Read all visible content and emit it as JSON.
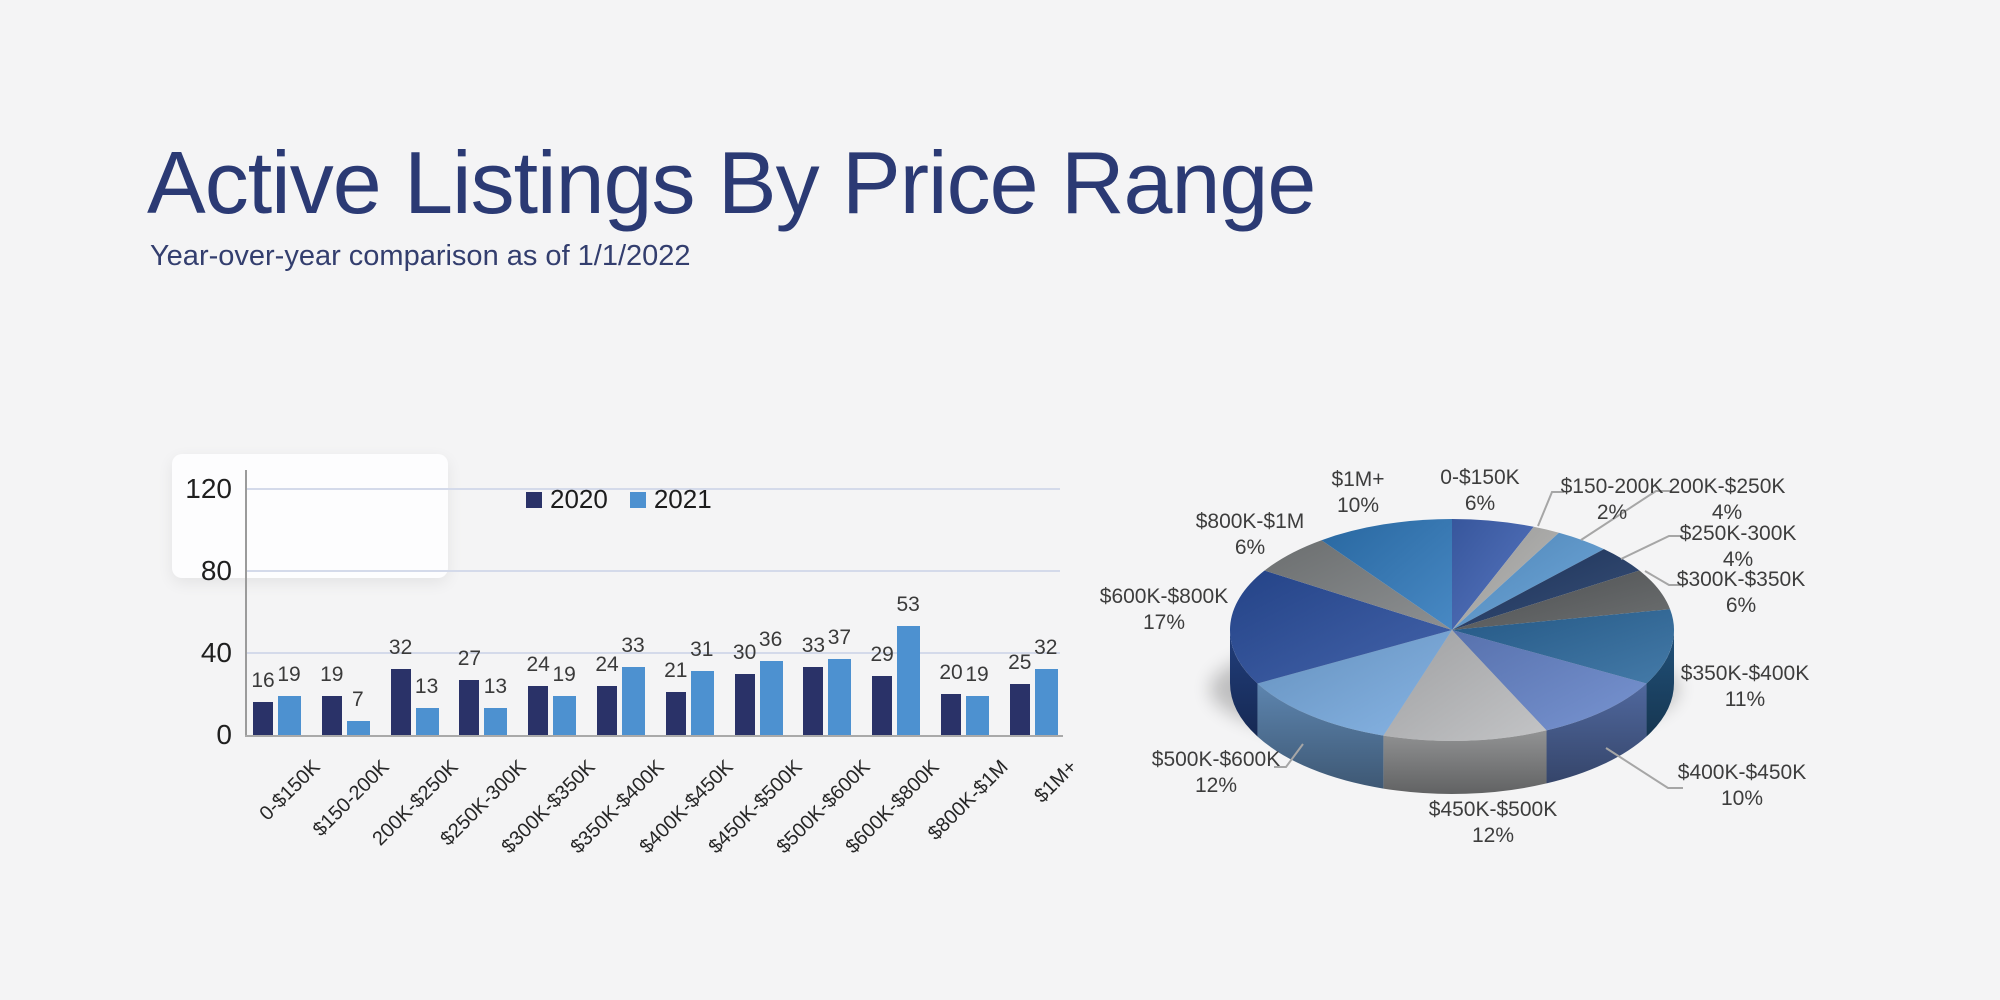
{
  "page": {
    "title": "Active Listings By Price Range",
    "subtitle": "Year-over-year comparison as of 1/1/2022",
    "background_color": "#f4f4f5",
    "title_color": "#2b3a74"
  },
  "chart_data": [
    {
      "type": "bar",
      "title": "",
      "categories": [
        "0-$150K",
        "$150-200K",
        "200K-$250K",
        "$250K-300K",
        "$300K-$350K",
        "$350K-$400K",
        "$400K-$450K",
        "$450K-$500K",
        "$500K-$600K",
        "$600K-$800K",
        "$800K-$1M",
        "$1M+"
      ],
      "series": [
        {
          "name": "2020",
          "color": "#2a3268",
          "values": [
            16,
            19,
            32,
            27,
            24,
            24,
            21,
            30,
            33,
            29,
            20,
            25
          ]
        },
        {
          "name": "2021",
          "color": "#4d91d0",
          "values": [
            19,
            7,
            13,
            13,
            19,
            33,
            31,
            36,
            37,
            53,
            19,
            32
          ]
        }
      ],
      "ylabel": "",
      "xlabel": "",
      "ylim": [
        0,
        120
      ],
      "yticks": [
        0,
        40,
        80,
        120
      ],
      "grid": true,
      "gridline_color": "#d4daea",
      "legend_position": "top-center",
      "value_labels": true
    },
    {
      "type": "pie",
      "style": "3d",
      "order": "clockwise-from-top",
      "labels": [
        "0-$150K",
        "$150-200K",
        "200K-$250K",
        "$250K-300K",
        "$300K-$350K",
        "$350K-$400K",
        "$400K-$450K",
        "$450K-$500K",
        "$500K-$600K",
        "$600K-$800K",
        "$800K-$1M",
        "$1M+"
      ],
      "values": [
        6,
        2,
        4,
        4,
        6,
        11,
        10,
        12,
        12,
        17,
        6,
        10
      ],
      "unit": "%",
      "percent_labels": [
        "6%",
        "2%",
        "4%",
        "4%",
        "6%",
        "11%",
        "10%",
        "12%",
        "12%",
        "17%",
        "6%",
        "10%"
      ],
      "colors": [
        "#4165b8",
        "#b2b2b0",
        "#5c9cd6",
        "#1f3966",
        "#595c5e",
        "#2a689c",
        "#6685cb",
        "#bbbcbe",
        "#77aae0",
        "#2a4f9f",
        "#7e8183",
        "#2f79bc"
      ],
      "leader_line_color": "#a6a6a6"
    }
  ]
}
